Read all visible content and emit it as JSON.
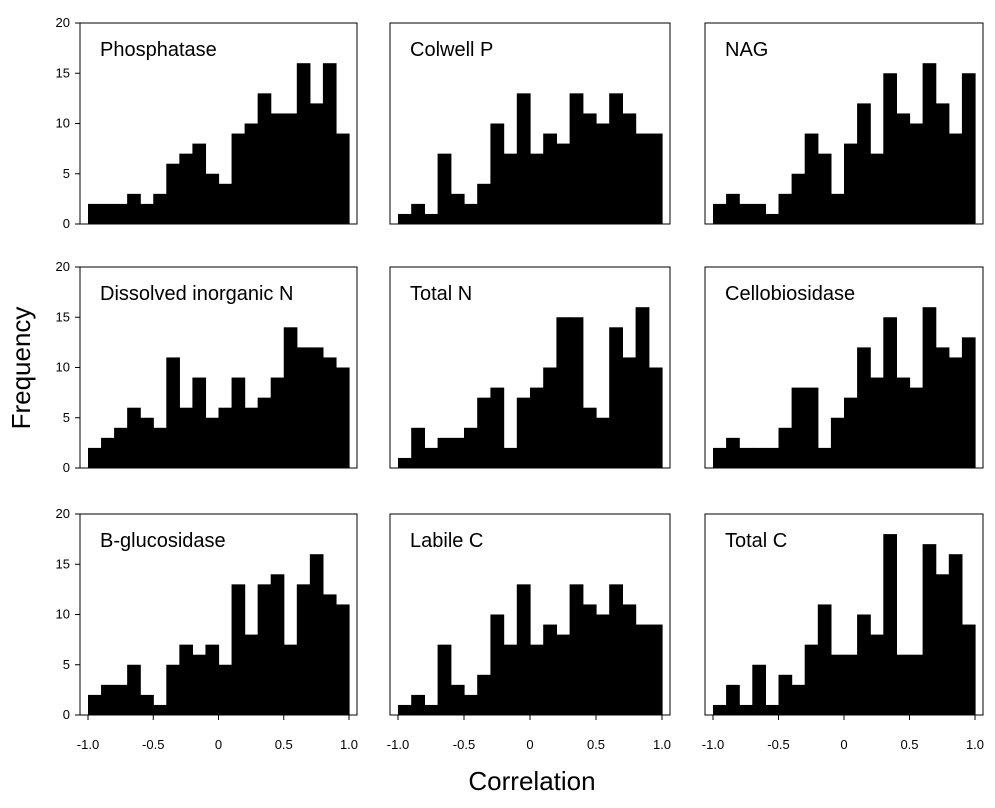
{
  "chart_data": {
    "type": "histogram-grid",
    "xlabel": "Correlation",
    "ylabel": "Frequency",
    "xlim": [
      -1.0,
      1.0
    ],
    "ylim": [
      0,
      20
    ],
    "bin_width": 0.1,
    "bin_starts": [
      -1.0,
      -0.9,
      -0.8,
      -0.7,
      -0.6,
      -0.5,
      -0.4,
      -0.3,
      -0.2,
      -0.1,
      0.0,
      0.1,
      0.2,
      0.3,
      0.4,
      0.5,
      0.6,
      0.7,
      0.8,
      0.9
    ],
    "x_ticks": [
      "-1.0",
      "-0.5",
      "0",
      "0.5",
      "1.0"
    ],
    "x_tick_values": [
      -1.0,
      -0.5,
      0,
      0.5,
      1.0
    ],
    "y_ticks": [
      "0",
      "5",
      "10",
      "15",
      "20"
    ],
    "y_tick_values": [
      0,
      5,
      10,
      15,
      20
    ],
    "panels": [
      {
        "title": "Phosphatase",
        "values": [
          2,
          2,
          2,
          3,
          2,
          3,
          6,
          7,
          8,
          5,
          4,
          9,
          10,
          13,
          11,
          11,
          16,
          12,
          16,
          9
        ]
      },
      {
        "title": "Colwell P",
        "values": [
          1,
          2,
          1,
          7,
          3,
          2,
          4,
          10,
          7,
          13,
          7,
          9,
          8,
          13,
          11,
          10,
          13,
          11,
          9,
          9
        ]
      },
      {
        "title": "NAG",
        "values": [
          2,
          3,
          2,
          2,
          1,
          3,
          5,
          9,
          7,
          3,
          8,
          12,
          7,
          15,
          11,
          10,
          16,
          12,
          9,
          15
        ]
      },
      {
        "title": "Dissolved inorganic N",
        "values": [
          2,
          3,
          4,
          6,
          5,
          4,
          11,
          6,
          9,
          5,
          6,
          9,
          6,
          7,
          9,
          14,
          12,
          12,
          11,
          10
        ]
      },
      {
        "title": "Total N",
        "values": [
          1,
          4,
          2,
          3,
          3,
          4,
          7,
          8,
          2,
          7,
          8,
          10,
          15,
          15,
          6,
          5,
          14,
          11,
          16,
          10
        ]
      },
      {
        "title": "Cellobiosidase",
        "values": [
          2,
          3,
          2,
          2,
          2,
          4,
          8,
          8,
          2,
          5,
          7,
          12,
          9,
          15,
          9,
          8,
          16,
          12,
          11,
          13
        ]
      },
      {
        "title": "B-glucosidase",
        "values": [
          2,
          3,
          3,
          5,
          2,
          1,
          5,
          7,
          6,
          7,
          5,
          13,
          8,
          13,
          14,
          7,
          13,
          16,
          12,
          11
        ]
      },
      {
        "title": "Labile C",
        "values": [
          1,
          2,
          1,
          7,
          3,
          2,
          4,
          10,
          7,
          13,
          7,
          9,
          8,
          13,
          11,
          10,
          13,
          11,
          9,
          9
        ]
      },
      {
        "title": "Total C",
        "values": [
          1,
          3,
          1,
          5,
          1,
          4,
          3,
          7,
          11,
          6,
          6,
          10,
          8,
          18,
          6,
          6,
          17,
          14,
          16,
          9
        ]
      }
    ]
  }
}
